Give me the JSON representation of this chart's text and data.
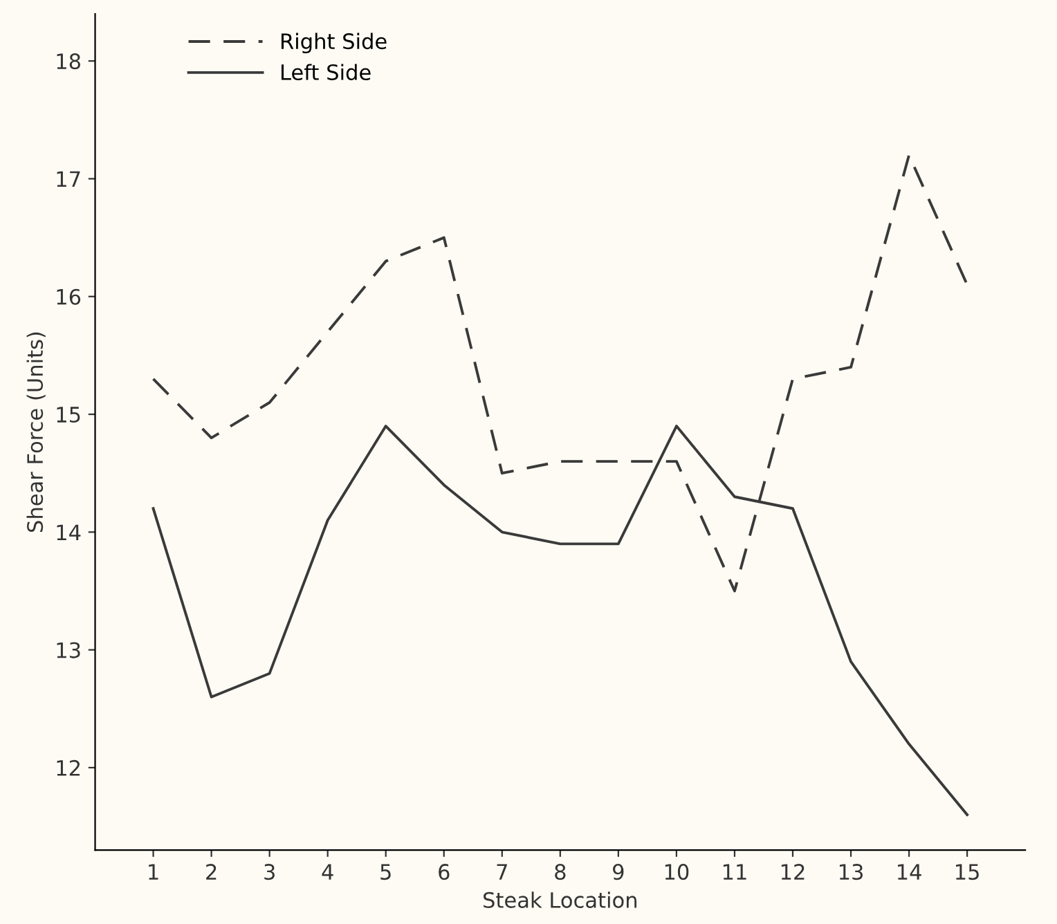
{
  "chart_data": {
    "type": "line",
    "xlabel": "Steak Location",
    "ylabel": "Shear Force (Units)",
    "x": [
      1,
      2,
      3,
      4,
      5,
      6,
      7,
      8,
      9,
      10,
      11,
      12,
      13,
      14,
      15
    ],
    "series": [
      {
        "name": "Right Side",
        "color": "#3a3a3a",
        "line_style": "dashed",
        "values": [
          15.3,
          14.8,
          15.1,
          15.7,
          16.3,
          16.5,
          14.5,
          14.6,
          14.6,
          14.6,
          13.5,
          15.3,
          15.4,
          17.2,
          16.1
        ]
      },
      {
        "name": "Left Side",
        "color": "#3a3a3a",
        "line_style": "solid",
        "values": [
          14.2,
          12.6,
          12.8,
          14.1,
          14.9,
          14.4,
          14.0,
          13.9,
          13.9,
          14.9,
          14.3,
          14.2,
          12.9,
          12.2,
          11.6
        ]
      }
    ],
    "xlim": [
      0,
      16
    ],
    "xticks": [
      1,
      2,
      3,
      4,
      5,
      6,
      7,
      8,
      9,
      10,
      11,
      12,
      13,
      14,
      15
    ],
    "ylim": [
      11.3,
      18.4
    ],
    "yticks": [
      12,
      13,
      14,
      15,
      16,
      17,
      18
    ],
    "grid": false,
    "legend": "top left",
    "marker": "none"
  }
}
